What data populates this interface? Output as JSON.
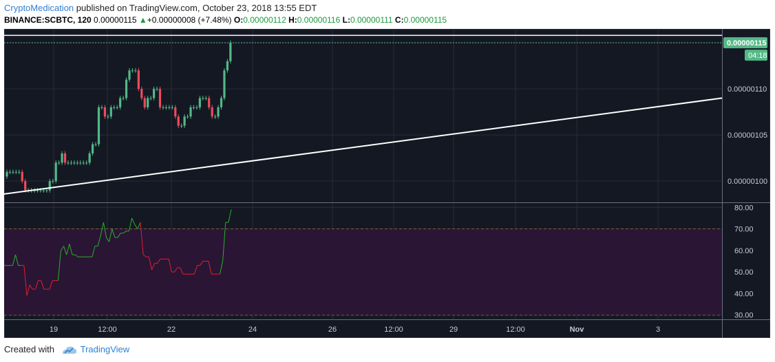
{
  "header": {
    "author": "CryptoMedication",
    "published_text": " published on TradingView.com, October 23, 2018 13:55 EDT"
  },
  "info": {
    "symbol": "BINANCE:SCBTC, 120",
    "last": "0.00000115",
    "change": "+0.00000008 (+7.48%)",
    "o_label": "O:",
    "o_value": "0.00000112",
    "h_label": "H:",
    "h_value": "0.00000116",
    "l_label": "L:",
    "l_value": "0.00000111",
    "c_label": "C:",
    "c_value": "0.00000115"
  },
  "colors": {
    "background": "#141823",
    "up": "#53b987",
    "down": "#eb4d5c",
    "rsi_band": "#2a1535",
    "rsi_up": "#28b028",
    "rsi_down": "#e0202a",
    "level_line": "#c79b3a"
  },
  "chart_data": [
    {
      "type": "candlestick",
      "title": "",
      "y_tick_labels": [
        "0.00000115",
        "0.00000110",
        "0.00000105",
        "0.00000100"
      ],
      "ylim": [
        9.77e-07,
        1.165e-06
      ],
      "current_price_label": "0.00000115",
      "countdown_label": "04:18",
      "x_tick_labels": [
        "19",
        "12:00",
        "22",
        "24",
        "26",
        "12:00",
        "29",
        "12:00",
        "Nov",
        "3"
      ],
      "grid": true,
      "candles_close_approx": [
        1.01e-06,
        1.01e-06,
        1.01e-06,
        1.01e-06,
        1.01e-06,
        1e-06,
        9.9e-07,
        9.9e-07,
        9.9e-07,
        9.9e-07,
        9.9e-07,
        9.9e-07,
        9.9e-07,
        9.9e-07,
        1e-06,
        1e-06,
        1.02e-06,
        1.02e-06,
        1.03e-06,
        1.02e-06,
        1.02e-06,
        1.02e-06,
        1.02e-06,
        1.02e-06,
        1.02e-06,
        1.02e-06,
        1.02e-06,
        1.03e-06,
        1.04e-06,
        1.04e-06,
        1.08e-06,
        1.08e-06,
        1.07e-06,
        1.07e-06,
        1.08e-06,
        1.08e-06,
        1.08e-06,
        1.09e-06,
        1.09e-06,
        1.11e-06,
        1.12e-06,
        1.12e-06,
        1.12e-06,
        1.1e-06,
        1.09e-06,
        1.08e-06,
        1.09e-06,
        1.09e-06,
        1.1e-06,
        1.1e-06,
        1.08e-06,
        1.08e-06,
        1.08e-06,
        1.08e-06,
        1.08e-06,
        1.07e-06,
        1.06e-06,
        1.06e-06,
        1.07e-06,
        1.07e-06,
        1.08e-06,
        1.08e-06,
        1.08e-06,
        1.09e-06,
        1.09e-06,
        1.09e-06,
        1.08e-06,
        1.07e-06,
        1.07e-06,
        1.08e-06,
        1.09e-06,
        1.12e-06,
        1.13e-06,
        1.15e-06
      ],
      "trendline": {
        "start": 9.86e-07,
        "end": 1.09e-06
      }
    },
    {
      "type": "line",
      "title": "",
      "y_tick_labels": [
        "80.00",
        "70.00",
        "60.00",
        "50.00",
        "40.00",
        "30.00"
      ],
      "ylim": [
        28,
        82
      ],
      "levels": [
        70,
        30
      ],
      "values": [
        53,
        53,
        53,
        53,
        58,
        53,
        53,
        53,
        39,
        44,
        42,
        42,
        46,
        46,
        42,
        42,
        42,
        46,
        46,
        46,
        60,
        62,
        58,
        63,
        58,
        58,
        57,
        57,
        57,
        57,
        57,
        57,
        62,
        62,
        67,
        73,
        66,
        64,
        70,
        66,
        66,
        68,
        68,
        69,
        69,
        75,
        72,
        70,
        73,
        58,
        57,
        57,
        51,
        54,
        54,
        56,
        56,
        56,
        56,
        50,
        50,
        52,
        52,
        49,
        49,
        49,
        49,
        49,
        53,
        53,
        55,
        55,
        55,
        49,
        49,
        49,
        49,
        55,
        73,
        73,
        79
      ]
    }
  ]
}
